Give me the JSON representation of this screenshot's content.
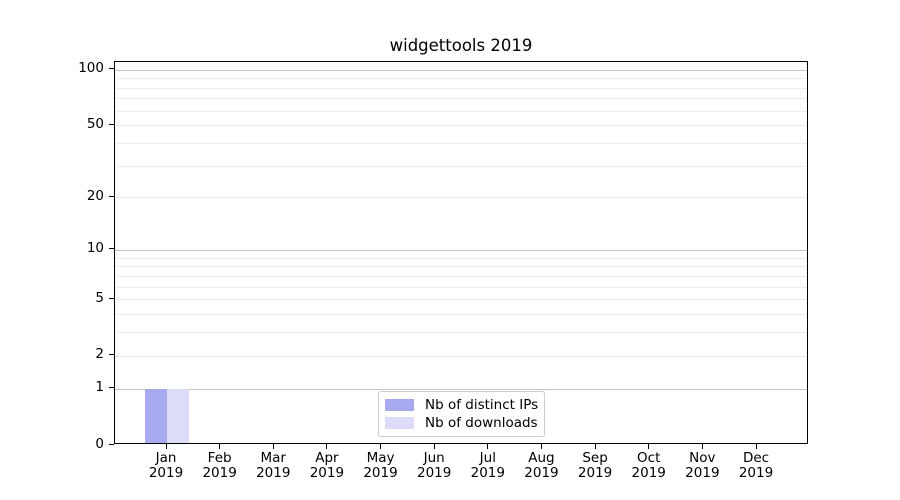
{
  "chart_data": {
    "type": "bar",
    "title": "widgettools 2019",
    "x": {
      "months": [
        "Jan",
        "Feb",
        "Mar",
        "Apr",
        "May",
        "Jun",
        "Jul",
        "Aug",
        "Sep",
        "Oct",
        "Nov",
        "Dec"
      ],
      "year": "2019"
    },
    "series": [
      {
        "name": "Nb of distinct IPs",
        "color": "#a9a9f0",
        "values": [
          1,
          0,
          0,
          0,
          0,
          0,
          0,
          0,
          0,
          0,
          0,
          0
        ]
      },
      {
        "name": "Nb of downloads",
        "color": "#dcdcf8",
        "values": [
          1,
          0,
          0,
          0,
          0,
          0,
          0,
          0,
          0,
          0,
          0,
          0
        ]
      }
    ],
    "y_axis": {
      "scale": "log1p",
      "ticks": [
        0,
        1,
        2,
        5,
        10,
        20,
        50,
        100
      ],
      "major_gridlines": [
        1,
        10,
        100
      ],
      "minor_gridlines": [
        2,
        3,
        4,
        5,
        6,
        7,
        8,
        9,
        20,
        30,
        40,
        50,
        60,
        70,
        80,
        90
      ],
      "ylim": [
        0,
        110
      ]
    },
    "legend": {
      "position": "lower-center"
    }
  },
  "colors": {
    "background": "#ffffff",
    "spine": "#000000",
    "grid_minor": "#ebebeb",
    "grid_major": "#c3c3c3",
    "legend_border": "#cccccc",
    "text": "#000000"
  }
}
